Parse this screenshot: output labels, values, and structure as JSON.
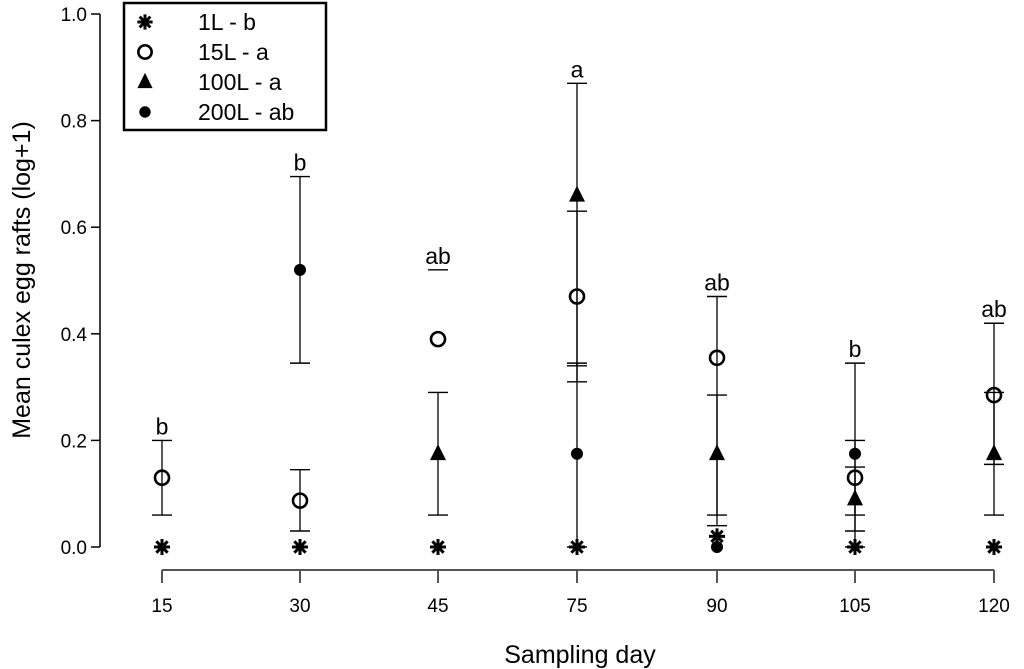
{
  "chart_data": {
    "type": "scatter",
    "xlabel": "Sampling day",
    "ylabel": "Mean culex egg rafts (log+1)",
    "categories": [
      "15",
      "30",
      "45",
      "75",
      "90",
      "105",
      "120"
    ],
    "ylim": [
      0,
      1.0
    ],
    "yticks": [
      "0.0",
      "0.2",
      "0.4",
      "0.6",
      "0.8",
      "1.0"
    ],
    "legend_position": "top-left",
    "series": [
      {
        "name": "1L - b",
        "marker": "asterisk",
        "values": [
          0,
          0,
          0,
          0,
          0.02,
          0,
          0
        ],
        "err_low": [
          null,
          null,
          null,
          null,
          null,
          null,
          null
        ],
        "err_high": [
          null,
          null,
          null,
          null,
          null,
          null,
          null
        ]
      },
      {
        "name": "15L - a",
        "marker": "open-circle",
        "values": [
          0.13,
          0.087,
          0.39,
          0.47,
          0.355,
          0.13,
          0.285
        ],
        "err_low": [
          0.06,
          0.03,
          null,
          0.31,
          0.06,
          0.06,
          null
        ],
        "err_high": [
          0.2,
          0.145,
          null,
          0.63,
          0.47,
          0.2,
          0.42
        ]
      },
      {
        "name": "100L - a",
        "marker": "filled-triangle",
        "values": [
          null,
          null,
          0.175,
          0.66,
          0.175,
          0.09,
          0.175
        ],
        "err_low": [
          null,
          null,
          0.06,
          0.34,
          0.04,
          0.03,
          0.06
        ],
        "err_high": [
          null,
          null,
          0.29,
          0.87,
          0.285,
          0.15,
          0.29
        ]
      },
      {
        "name": "200L - ab",
        "marker": "filled-circle",
        "values": [
          null,
          0.52,
          null,
          0.175,
          0.0,
          0.175,
          null
        ],
        "err_low": [
          null,
          0.345,
          null,
          0.0,
          null,
          0.0,
          0.155
        ],
        "err_high": [
          null,
          0.695,
          0.52,
          0.345,
          null,
          0.345,
          0.42
        ]
      }
    ],
    "annotations": [
      {
        "category": "15",
        "text": "b",
        "y": 0.2
      },
      {
        "category": "30",
        "text": "b",
        "y": 0.695
      },
      {
        "category": "45",
        "text": "ab",
        "y": 0.52
      },
      {
        "category": "75",
        "text": "a",
        "y": 0.87
      },
      {
        "category": "90",
        "text": "ab",
        "y": 0.47
      },
      {
        "category": "105",
        "text": "b",
        "y": 0.345
      },
      {
        "category": "120",
        "text": "ab",
        "y": 0.42
      }
    ]
  }
}
